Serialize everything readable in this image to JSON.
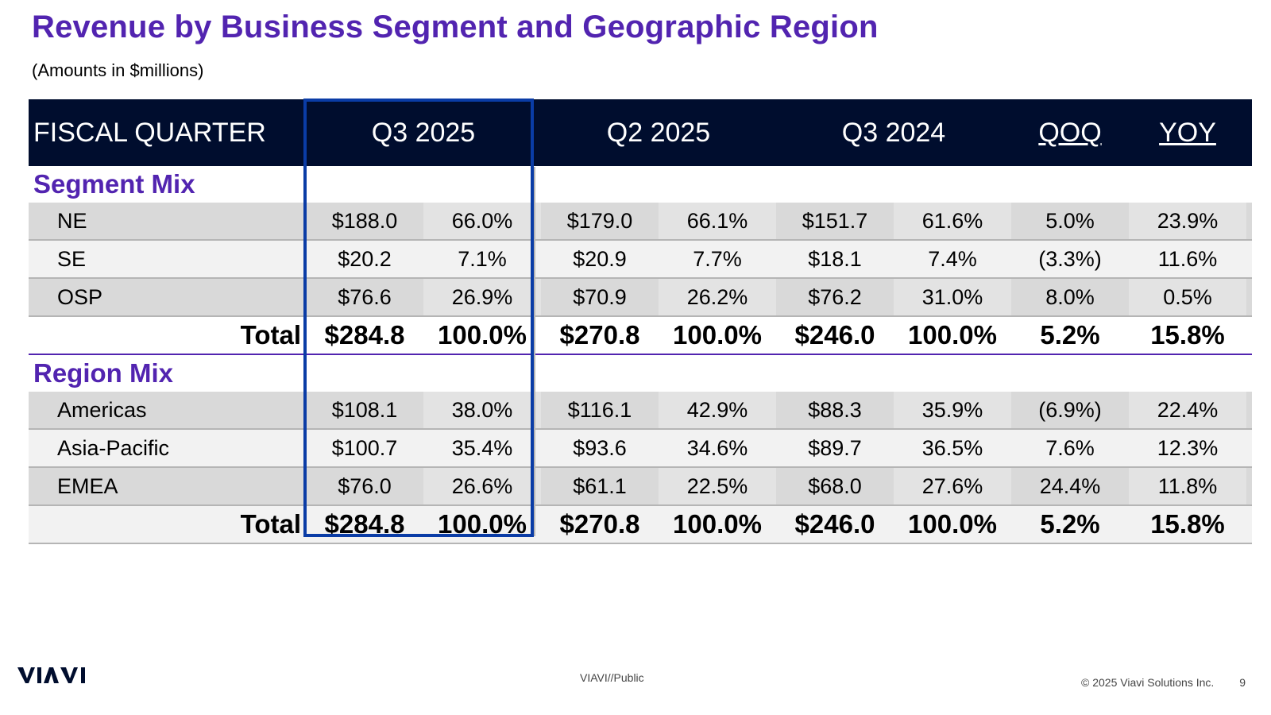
{
  "title": "Revenue by Business Segment and Geographic Region",
  "subtitle": "(Amounts in $millions)",
  "header": {
    "label": "FISCAL QUARTER",
    "q1": "Q3 2025",
    "q2": "Q2 2025",
    "q3": "Q3 2024",
    "qoq": "QOQ",
    "yoy": "YOY"
  },
  "segment": {
    "heading": "Segment Mix",
    "rows": [
      {
        "label": "NE",
        "v": [
          "$188.0",
          "66.0%",
          "$179.0",
          "66.1%",
          "$151.7",
          "61.6%",
          "5.0%",
          "23.9%"
        ]
      },
      {
        "label": "SE",
        "v": [
          "$20.2",
          "7.1%",
          "$20.9",
          "7.7%",
          "$18.1",
          "7.4%",
          "(3.3%)",
          "11.6%"
        ]
      },
      {
        "label": "OSP",
        "v": [
          "$76.6",
          "26.9%",
          "$70.9",
          "26.2%",
          "$76.2",
          "31.0%",
          "8.0%",
          "0.5%"
        ]
      }
    ],
    "total": {
      "label": "Total",
      "v": [
        "$284.8",
        "100.0%",
        "$270.8",
        "100.0%",
        "$246.0",
        "100.0%",
        "5.2%",
        "15.8%"
      ]
    }
  },
  "region": {
    "heading": "Region Mix",
    "rows": [
      {
        "label": "Americas",
        "v": [
          "$108.1",
          "38.0%",
          "$116.1",
          "42.9%",
          "$88.3",
          "35.9%",
          "(6.9%)",
          "22.4%"
        ]
      },
      {
        "label": "Asia-Pacific",
        "v": [
          "$100.7",
          "35.4%",
          "$93.6",
          "34.6%",
          "$89.7",
          "36.5%",
          "7.6%",
          "12.3%"
        ]
      },
      {
        "label": "EMEA",
        "v": [
          "$76.0",
          "26.6%",
          "$61.1",
          "22.5%",
          "$68.0",
          "27.6%",
          "24.4%",
          "11.8%"
        ]
      }
    ],
    "total": {
      "label": "Total",
      "v": [
        "$284.8",
        "100.0%",
        "$270.8",
        "100.0%",
        "$246.0",
        "100.0%",
        "5.2%",
        "15.8%"
      ]
    }
  },
  "footer": {
    "logo": "VIAVI",
    "classification": "VIAVI//Public",
    "copyright": "© 2025 Viavi Solutions Inc.",
    "page": "9"
  },
  "colors": {
    "title": "#5224b0",
    "header_bg": "#000d2e",
    "highlight": "#0a3ca6"
  }
}
